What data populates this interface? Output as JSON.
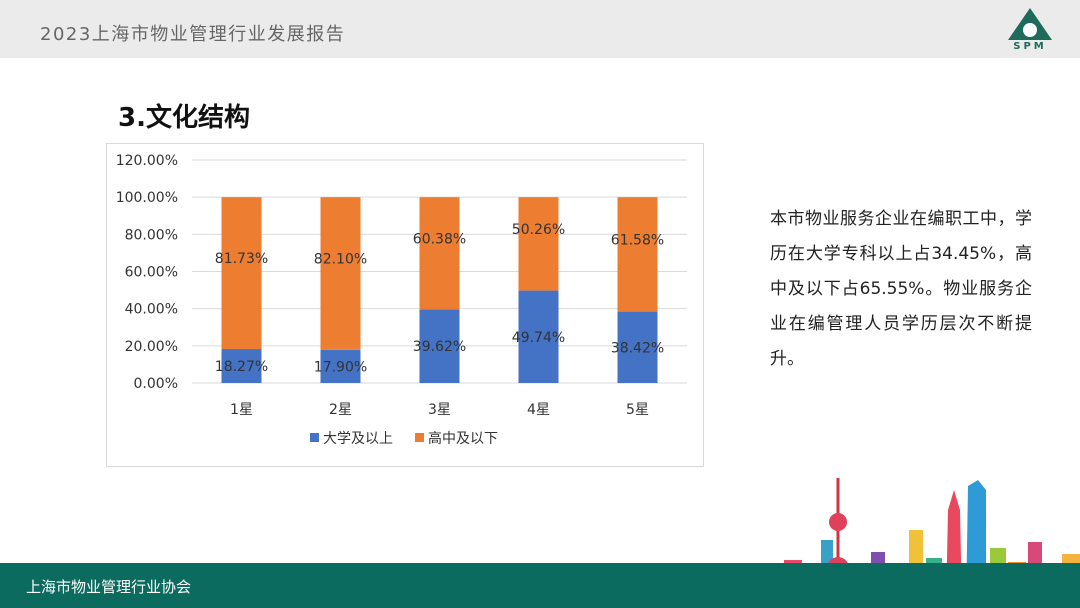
{
  "header": {
    "title": "2023上海市物业管理行业发展报告",
    "logo_text": "SPM",
    "logo_icon": "spm-triangle-logo-icon"
  },
  "section": {
    "title": "3.文化结构"
  },
  "chart_data": {
    "type": "bar",
    "stacked": true,
    "categories": [
      "1星",
      "2星",
      "3星",
      "4星",
      "5星"
    ],
    "series": [
      {
        "name": "大学及以上",
        "color": "#4472c4",
        "values": [
          18.27,
          17.9,
          39.62,
          49.74,
          38.42
        ],
        "labels": [
          "18.27%",
          "17.90%",
          "39.62%",
          "49.74%",
          "38.42%"
        ]
      },
      {
        "name": "高中及以下",
        "color": "#ed7d31",
        "values": [
          81.73,
          82.1,
          60.38,
          50.26,
          61.58
        ],
        "labels": [
          "81.73%",
          "82.10%",
          "60.38%",
          "50.26%",
          "61.58%"
        ]
      }
    ],
    "yticks": [
      "0.00%",
      "20.00%",
      "40.00%",
      "60.00%",
      "80.00%",
      "100.00%",
      "120.00%"
    ],
    "ylim": [
      0,
      120
    ],
    "grid": true,
    "legend_position": "bottom"
  },
  "description": "本市物业服务企业在编职工中，学历在大学专科以上占34.45%，高中及以下占65.55%。物业服务企业在编管理人员学历层次不断提升。",
  "footer": {
    "text": "上海市物业管理行业协会"
  }
}
